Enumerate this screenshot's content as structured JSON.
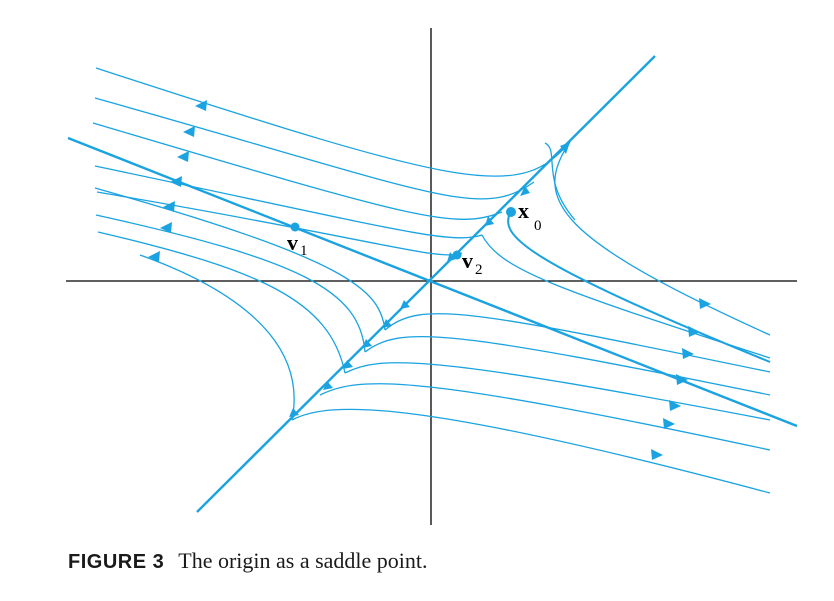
{
  "figure": {
    "caption_number": "FIGURE 3",
    "caption_text": "The origin as a saddle point.",
    "labels": {
      "v1": "v",
      "v1_sub": "1",
      "v2": "v",
      "v2_sub": "2",
      "x0": "x",
      "x0_sub": "0"
    },
    "colors": {
      "trajectory": "#1aa3e0",
      "axis": "#000000"
    }
  }
}
